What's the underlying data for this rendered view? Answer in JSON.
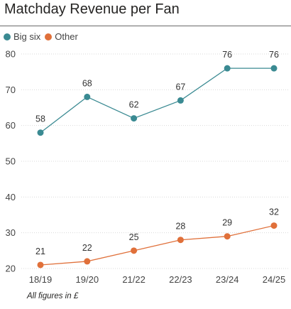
{
  "chart_data": {
    "type": "line",
    "title": "Matchday Revenue per Fan",
    "categories": [
      "18/19",
      "19/20",
      "21/22",
      "22/23",
      "23/24",
      "24/25"
    ],
    "series": [
      {
        "name": "Big six",
        "values": [
          58,
          68,
          62,
          67,
          76,
          76
        ],
        "color": "#3a8a92"
      },
      {
        "name": "Other",
        "values": [
          21,
          22,
          25,
          28,
          29,
          32
        ],
        "color": "#e0703a"
      }
    ],
    "yticks": [
      20,
      30,
      40,
      50,
      60,
      70,
      80
    ],
    "ylim": [
      20,
      80
    ],
    "xlabel": "",
    "ylabel": "",
    "grid": true,
    "legend": "top-left",
    "data_labels": true,
    "footnote": "All figures in £"
  }
}
